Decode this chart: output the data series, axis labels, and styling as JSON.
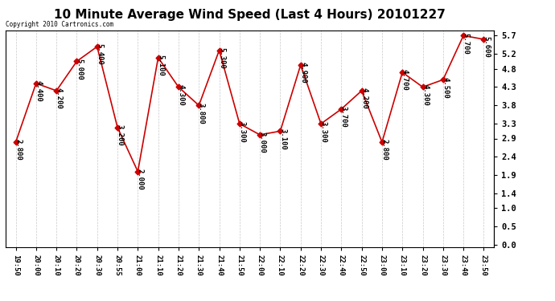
{
  "title": "10 Minute Average Wind Speed (Last 4 Hours) 20101227",
  "copyright": "Copyright 2010 Cartronics.com",
  "x_labels": [
    "19:50",
    "20:00",
    "20:10",
    "20:20",
    "20:30",
    "20:55",
    "21:00",
    "21:10",
    "21:20",
    "21:30",
    "21:40",
    "21:50",
    "22:00",
    "22:10",
    "22:20",
    "22:30",
    "22:40",
    "22:50",
    "23:00",
    "23:10",
    "23:20",
    "23:30",
    "23:40",
    "23:50"
  ],
  "y_values": [
    2.8,
    4.4,
    4.2,
    5.0,
    5.4,
    3.2,
    2.0,
    5.1,
    4.3,
    3.8,
    5.3,
    3.3,
    3.0,
    3.1,
    4.9,
    3.3,
    3.7,
    4.2,
    2.8,
    4.7,
    4.3,
    4.5,
    5.7,
    5.6
  ],
  "data_labels": [
    "2.800",
    "4.400",
    "4.200",
    "5.000",
    "5.400",
    "3.200",
    "2.000",
    "5.100",
    "4.300",
    "3.800",
    "5.300",
    "3.300",
    "3.000",
    "3.100",
    "4.900",
    "3.300",
    "3.700",
    "4.200",
    "2.800",
    "4.700",
    "4.300",
    "4.500",
    "5.700",
    "5.600"
  ],
  "line_color": "#cc0000",
  "marker_color": "#cc0000",
  "background_color": "#ffffff",
  "plot_bg_color": "#ffffff",
  "grid_color": "#bbbbbb",
  "title_fontsize": 11,
  "ytick_labels": [
    "0.0",
    "0.5",
    "1.0",
    "1.4",
    "1.9",
    "2.4",
    "2.9",
    "3.3",
    "3.8",
    "4.3",
    "4.8",
    "5.2",
    "5.7"
  ],
  "ytick_values": [
    0.0,
    0.5,
    1.0,
    1.4,
    1.9,
    2.4,
    2.9,
    3.3,
    3.8,
    4.3,
    4.8,
    5.2,
    5.7
  ],
  "ylim": [
    -0.05,
    5.85
  ],
  "annotation_fontsize": 6.5,
  "annotation_rotation": 270
}
